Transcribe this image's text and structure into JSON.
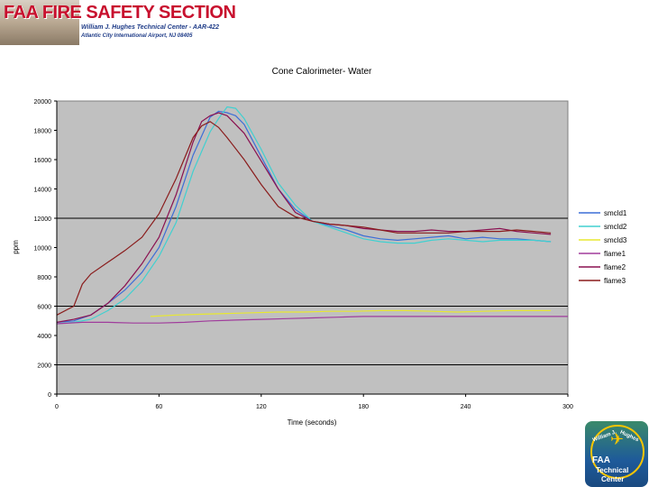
{
  "header": {
    "title": "FAA FIRE SAFETY SECTION",
    "line1": "William J. Hughes Technical Center - AAR-422",
    "line2": "Atlantic City International Airport, NJ 08405"
  },
  "logo": {
    "arc_left": "William J.",
    "arc_right": "Hughes",
    "line1": "FAA",
    "line2": "Technical",
    "line3": "Center"
  },
  "chart_data": {
    "type": "line",
    "title": "Cone Calorimeter- Water",
    "xlabel": "Time (seconds)",
    "ylabel": "ppm",
    "xlim": [
      0,
      300
    ],
    "ylim": [
      0,
      20000
    ],
    "xticks": [
      0,
      60,
      120,
      180,
      240,
      300
    ],
    "yticks": [
      0,
      2000,
      4000,
      6000,
      8000,
      10000,
      12000,
      14000,
      16000,
      18000,
      20000
    ],
    "grid": "horizontal-major-every-6000",
    "legend_position": "right",
    "plot_background": "#c0c0c0",
    "series": [
      {
        "name": "smcld1",
        "color": "#3c6ed7",
        "x": [
          0,
          10,
          20,
          30,
          40,
          50,
          60,
          70,
          80,
          90,
          95,
          100,
          105,
          110,
          120,
          130,
          140,
          150,
          160,
          170,
          180,
          190,
          200,
          210,
          220,
          230,
          240,
          250,
          260,
          270,
          280,
          290
        ],
        "y": [
          4900,
          5000,
          5400,
          6200,
          7100,
          8300,
          10000,
          12800,
          16300,
          18900,
          19300,
          19200,
          19000,
          18400,
          16200,
          14000,
          12600,
          11800,
          11500,
          11200,
          10800,
          10600,
          10500,
          10600,
          10700,
          10800,
          10600,
          10700,
          10600,
          10600,
          10500,
          10400
        ]
      },
      {
        "name": "smcld2",
        "color": "#40d0d0",
        "x": [
          0,
          10,
          20,
          30,
          40,
          50,
          60,
          70,
          80,
          90,
          95,
          100,
          105,
          110,
          120,
          130,
          140,
          150,
          160,
          170,
          180,
          190,
          200,
          210,
          220,
          230,
          240,
          250,
          260,
          270,
          280,
          290
        ],
        "y": [
          4800,
          4900,
          5100,
          5700,
          6500,
          7700,
          9400,
          11700,
          15200,
          17900,
          18800,
          19600,
          19500,
          18800,
          16700,
          14400,
          12900,
          11800,
          11400,
          11000,
          10600,
          10400,
          10300,
          10300,
          10500,
          10600,
          10500,
          10400,
          10500,
          10500,
          10500,
          10400
        ]
      },
      {
        "name": "smcld3",
        "color": "#e8e830",
        "x": [
          55,
          70,
          85,
          100,
          115,
          130,
          145,
          160,
          175,
          190,
          205,
          220,
          235,
          250,
          265,
          280,
          290
        ],
        "y": [
          5300,
          5400,
          5450,
          5500,
          5550,
          5600,
          5600,
          5650,
          5650,
          5700,
          5700,
          5650,
          5600,
          5650,
          5700,
          5700,
          5700
        ]
      },
      {
        "name": "flame1",
        "color": "#a03c9c",
        "x": [
          0,
          15,
          30,
          45,
          60,
          75,
          90,
          105,
          120,
          135,
          150,
          165,
          180,
          195,
          210,
          225,
          240,
          255,
          270,
          285,
          300
        ],
        "y": [
          4800,
          4900,
          4900,
          4850,
          4850,
          4900,
          5000,
          5050,
          5100,
          5150,
          5200,
          5250,
          5300,
          5300,
          5300,
          5300,
          5300,
          5300,
          5300,
          5300,
          5300
        ]
      },
      {
        "name": "flame2",
        "color": "#8a1050",
        "x": [
          0,
          10,
          20,
          30,
          40,
          50,
          60,
          70,
          80,
          85,
          90,
          95,
          100,
          110,
          120,
          130,
          140,
          150,
          160,
          170,
          180,
          190,
          200,
          210,
          220,
          230,
          240,
          250,
          260,
          270,
          280,
          290
        ],
        "y": [
          4900,
          5100,
          5400,
          6200,
          7400,
          8900,
          10700,
          13600,
          17200,
          18600,
          19000,
          19200,
          19000,
          17800,
          15900,
          14000,
          12400,
          11800,
          11600,
          11500,
          11300,
          11200,
          11100,
          11100,
          11200,
          11100,
          11100,
          11200,
          11300,
          11100,
          11000,
          10900
        ]
      },
      {
        "name": "flame3",
        "color": "#8a1c1c",
        "x": [
          0,
          10,
          15,
          20,
          30,
          40,
          50,
          60,
          70,
          80,
          85,
          90,
          95,
          100,
          110,
          120,
          130,
          140,
          150,
          160,
          170,
          180,
          190,
          200,
          210,
          220,
          230,
          240,
          250,
          260,
          270,
          280,
          290
        ],
        "y": [
          5400,
          6000,
          7500,
          8200,
          9000,
          9800,
          10700,
          12300,
          14700,
          17500,
          18300,
          18600,
          18200,
          17500,
          16000,
          14300,
          12800,
          12100,
          11800,
          11600,
          11500,
          11400,
          11200,
          11000,
          11000,
          11000,
          11000,
          11100,
          11100,
          11100,
          11200,
          11100,
          11000
        ]
      }
    ]
  }
}
